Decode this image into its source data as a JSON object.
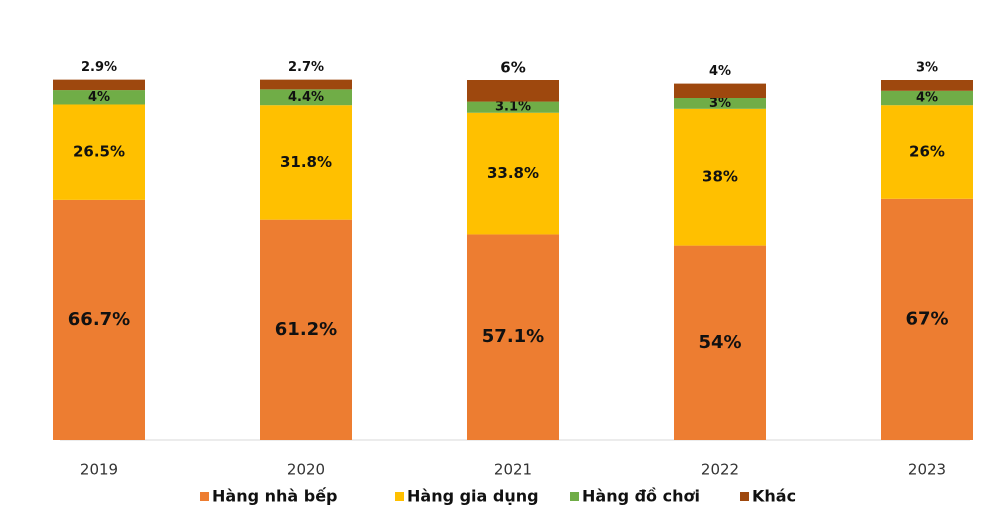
{
  "chart_data": {
    "type": "stacked_bar",
    "categories": [
      "2019",
      "2020",
      "2021",
      "2022",
      "2023"
    ],
    "ylim": [
      0,
      100
    ],
    "legend": "bottom",
    "series": [
      {
        "name": "Hàng nhà bếp",
        "color": "#ed7d31",
        "values": [
          66.7,
          61.2,
          57.1,
          54,
          67
        ],
        "value_labels": [
          "66.7%",
          "61.2%",
          "57.1%",
          "54%",
          "67%"
        ]
      },
      {
        "name": "Hàng gia dụng",
        "color": "#ffc000",
        "values": [
          26.5,
          31.8,
          33.8,
          38,
          26
        ],
        "value_labels": [
          "26.5%",
          "31.8%",
          "33.8%",
          "38%",
          "26%"
        ]
      },
      {
        "name": "Hàng đồ chơi",
        "color": "#70ad47",
        "values": [
          4,
          4.4,
          3.1,
          3,
          4
        ],
        "value_labels": [
          "4%",
          "4.4%",
          "3.1%",
          "3%",
          "4%"
        ]
      },
      {
        "name": "Khác",
        "color": "#9e480e",
        "values": [
          2.9,
          2.7,
          6,
          4,
          3
        ],
        "value_labels": [
          "2.9%",
          "2.7%",
          "6%",
          "4%",
          "3%"
        ]
      }
    ]
  }
}
